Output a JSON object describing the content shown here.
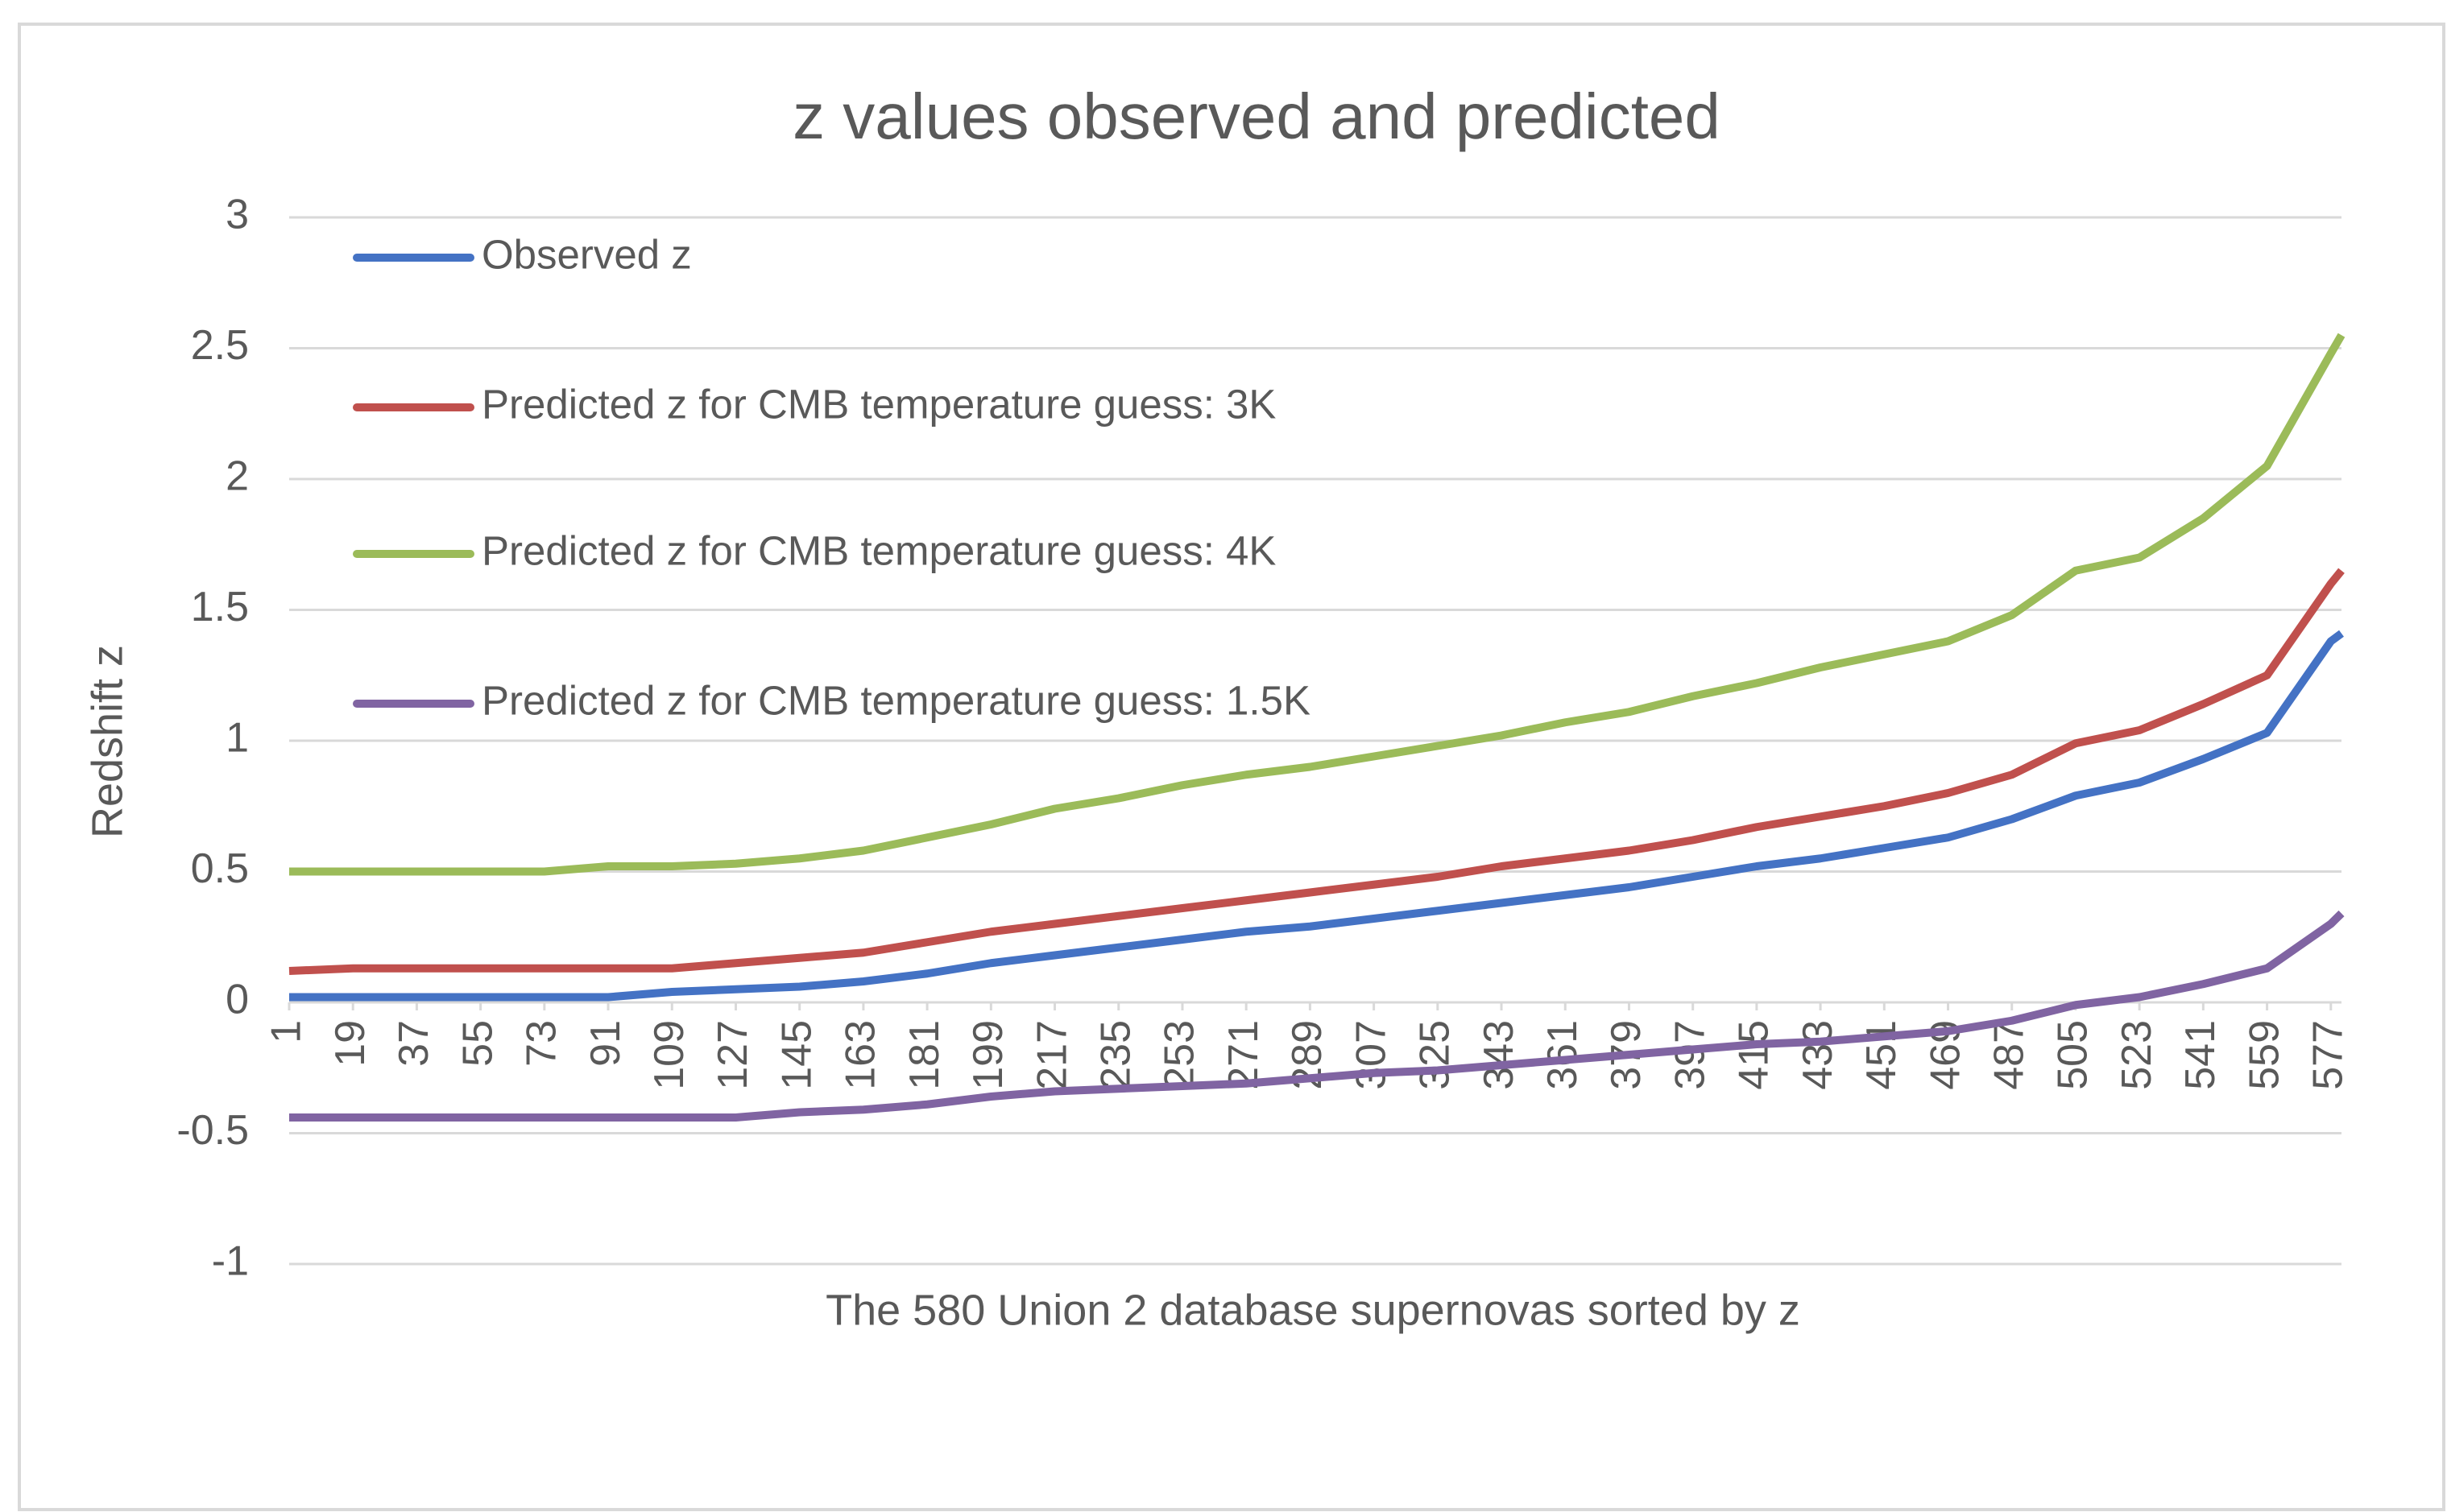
{
  "chart_data": {
    "type": "line",
    "title": "z values observed and  predicted",
    "x_label": "The 580 Union 2 database supernovas sorted by z",
    "y_label": "Redshift z",
    "x": [
      1,
      19,
      37,
      55,
      73,
      91,
      109,
      127,
      145,
      163,
      181,
      199,
      217,
      235,
      253,
      271,
      289,
      307,
      325,
      343,
      361,
      379,
      397,
      415,
      433,
      451,
      469,
      487,
      505,
      523,
      541,
      559,
      577,
      580
    ],
    "xlim": [
      1,
      580
    ],
    "xticks": [
      1,
      19,
      37,
      55,
      73,
      91,
      109,
      127,
      145,
      163,
      181,
      199,
      217,
      235,
      253,
      271,
      289,
      307,
      325,
      343,
      361,
      379,
      397,
      415,
      433,
      451,
      469,
      487,
      505,
      523,
      541,
      559,
      577
    ],
    "ylim": [
      -1,
      3
    ],
    "yticks": [
      -1,
      -0.5,
      0,
      0.5,
      1,
      1.5,
      2,
      2.5,
      3
    ],
    "grid": true,
    "legend": "top-left",
    "series": [
      {
        "name": "Observed z",
        "color": "#4472c4",
        "values": [
          0.02,
          0.02,
          0.02,
          0.02,
          0.02,
          0.02,
          0.04,
          0.05,
          0.06,
          0.08,
          0.11,
          0.15,
          0.18,
          0.21,
          0.24,
          0.27,
          0.29,
          0.32,
          0.35,
          0.38,
          0.41,
          0.44,
          0.48,
          0.52,
          0.55,
          0.59,
          0.63,
          0.7,
          0.79,
          0.84,
          0.93,
          1.03,
          1.38,
          1.41
        ]
      },
      {
        "name": "Predicted z for CMB temperature guess: 3K",
        "color": "#c0504d",
        "values": [
          0.12,
          0.13,
          0.13,
          0.13,
          0.13,
          0.13,
          0.13,
          0.15,
          0.17,
          0.19,
          0.23,
          0.27,
          0.3,
          0.33,
          0.36,
          0.39,
          0.42,
          0.45,
          0.48,
          0.52,
          0.55,
          0.58,
          0.62,
          0.67,
          0.71,
          0.75,
          0.8,
          0.87,
          0.99,
          1.04,
          1.14,
          1.25,
          1.6,
          1.65
        ]
      },
      {
        "name": "Predicted z for CMB temperature guess: 4K",
        "color": "#9bbb59",
        "values": [
          0.5,
          0.5,
          0.5,
          0.5,
          0.5,
          0.52,
          0.52,
          0.53,
          0.55,
          0.58,
          0.63,
          0.68,
          0.74,
          0.78,
          0.83,
          0.87,
          0.9,
          0.94,
          0.98,
          1.02,
          1.07,
          1.11,
          1.17,
          1.22,
          1.28,
          1.33,
          1.38,
          1.48,
          1.65,
          1.7,
          1.85,
          2.05,
          2.48,
          2.55
        ]
      },
      {
        "name": "Predicted z for CMB temperature guess: 1.5K",
        "color": "#8064a2",
        "values": [
          -0.44,
          -0.44,
          -0.44,
          -0.44,
          -0.44,
          -0.44,
          -0.44,
          -0.44,
          -0.42,
          -0.41,
          -0.39,
          -0.36,
          -0.34,
          -0.33,
          -0.32,
          -0.31,
          -0.29,
          -0.27,
          -0.26,
          -0.24,
          -0.22,
          -0.2,
          -0.18,
          -0.16,
          -0.15,
          -0.13,
          -0.11,
          -0.07,
          -0.01,
          0.02,
          0.07,
          0.13,
          0.3,
          0.34
        ]
      }
    ]
  }
}
